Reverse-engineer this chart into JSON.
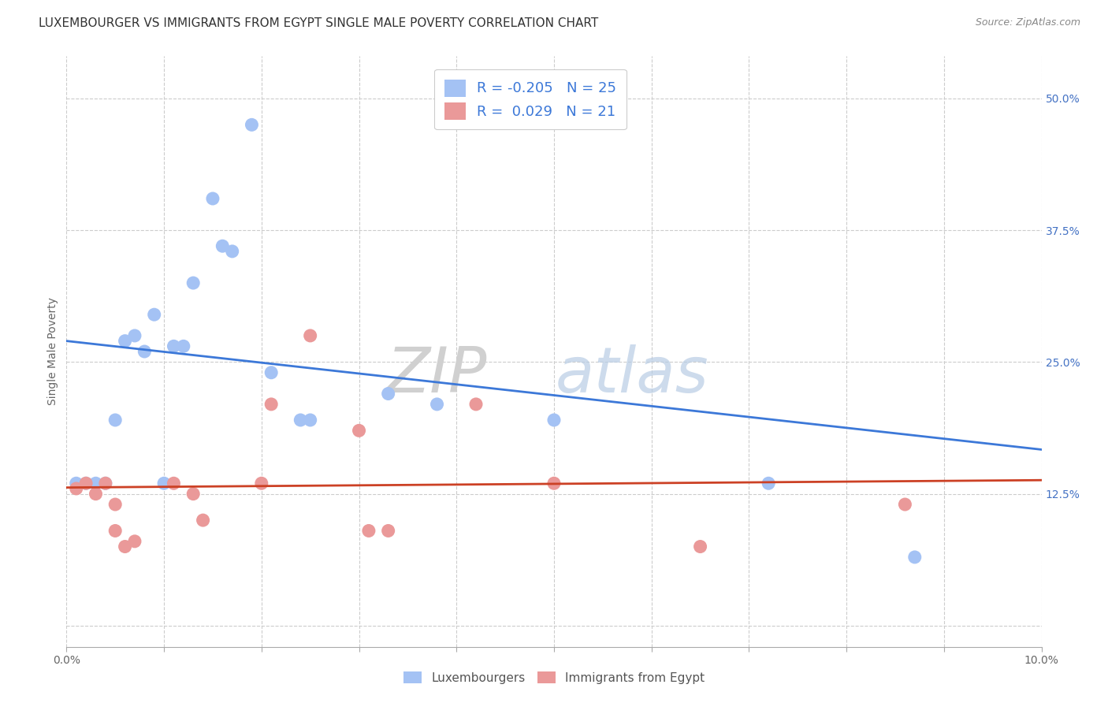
{
  "title": "LUXEMBOURGER VS IMMIGRANTS FROM EGYPT SINGLE MALE POVERTY CORRELATION CHART",
  "source": "Source: ZipAtlas.com",
  "ylabel": "Single Male Poverty",
  "yticks": [
    0.0,
    0.125,
    0.25,
    0.375,
    0.5
  ],
  "ytick_labels": [
    "",
    "12.5%",
    "25.0%",
    "37.5%",
    "50.0%"
  ],
  "xlim": [
    0.0,
    0.1
  ],
  "ylim": [
    -0.02,
    0.54
  ],
  "blue_r": "-0.205",
  "blue_n": "25",
  "pink_r": "0.029",
  "pink_n": "21",
  "blue_scatter_x": [
    0.001,
    0.002,
    0.003,
    0.004,
    0.005,
    0.006,
    0.007,
    0.008,
    0.009,
    0.01,
    0.011,
    0.012,
    0.013,
    0.015,
    0.016,
    0.017,
    0.019,
    0.021,
    0.024,
    0.025,
    0.033,
    0.038,
    0.05,
    0.072,
    0.087
  ],
  "blue_scatter_y": [
    0.135,
    0.135,
    0.135,
    0.135,
    0.195,
    0.27,
    0.275,
    0.26,
    0.295,
    0.135,
    0.265,
    0.265,
    0.325,
    0.405,
    0.36,
    0.355,
    0.475,
    0.24,
    0.195,
    0.195,
    0.22,
    0.21,
    0.195,
    0.135,
    0.065
  ],
  "pink_scatter_x": [
    0.001,
    0.002,
    0.003,
    0.004,
    0.005,
    0.005,
    0.006,
    0.007,
    0.011,
    0.013,
    0.014,
    0.02,
    0.021,
    0.025,
    0.03,
    0.031,
    0.033,
    0.042,
    0.05,
    0.065,
    0.086
  ],
  "pink_scatter_y": [
    0.13,
    0.135,
    0.125,
    0.135,
    0.115,
    0.09,
    0.075,
    0.08,
    0.135,
    0.125,
    0.1,
    0.135,
    0.21,
    0.275,
    0.185,
    0.09,
    0.09,
    0.21,
    0.135,
    0.075,
    0.115
  ],
  "blue_line_x": [
    0.0,
    0.1
  ],
  "blue_line_y": [
    0.27,
    0.167
  ],
  "pink_line_x": [
    0.0,
    0.1
  ],
  "pink_line_y": [
    0.131,
    0.138
  ],
  "blue_color": "#a4c2f4",
  "pink_color": "#ea9999",
  "blue_line_color": "#3c78d8",
  "pink_line_color": "#cc4125",
  "grid_color": "#cccccc",
  "background_color": "#ffffff",
  "watermark_zip": "ZIP",
  "watermark_atlas": "atlas",
  "title_fontsize": 11,
  "legend_fontsize": 13,
  "axis_label_fontsize": 10,
  "tick_fontsize": 10,
  "source_fontsize": 9,
  "xtick_positions": [
    0.0,
    0.01,
    0.02,
    0.03,
    0.04,
    0.05,
    0.06,
    0.07,
    0.08,
    0.09,
    0.1
  ],
  "x_grid_positions": [
    0.0,
    0.01,
    0.02,
    0.03,
    0.04,
    0.05,
    0.06,
    0.07,
    0.08,
    0.09,
    0.1
  ]
}
